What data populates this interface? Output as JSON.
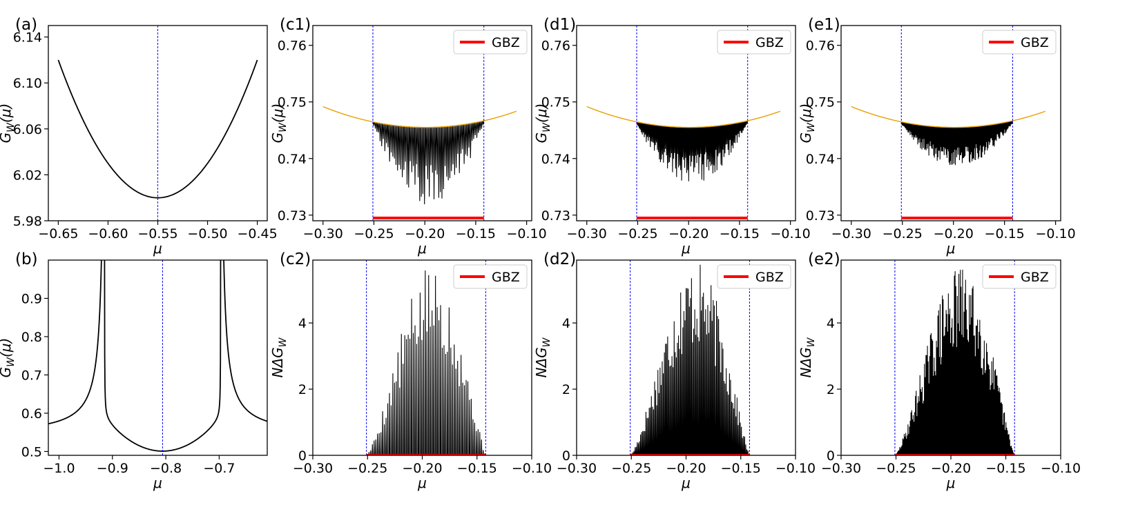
{
  "figure": "Eight-panel figure: G_W(mu) and N*Delta G_W versus mu with GBZ markers",
  "colors": {
    "curve": "#000000",
    "envelope": "#e8a000",
    "gbz": "#ff0000",
    "guide": "#0000ff",
    "frame": "#000000"
  },
  "chart_data": [
    {
      "id": "a",
      "panel_label": "(a)",
      "type": "line",
      "xlabel": "μ",
      "ylabel": "G_W(μ)",
      "ylabel_main": "G",
      "ylabel_sub": "W",
      "ylabel_tail": "(μ)",
      "xlim": [
        -0.66,
        -0.44
      ],
      "ylim": [
        5.98,
        6.15
      ],
      "xticks": [
        -0.65,
        -0.6,
        -0.55,
        -0.5,
        -0.45
      ],
      "xtick_labels": [
        "−0.65",
        "−0.60",
        "−0.55",
        "−0.50",
        "−0.45"
      ],
      "yticks": [
        5.98,
        6.02,
        6.06,
        6.1,
        6.14
      ],
      "ytick_labels": [
        "5.98",
        "6.02",
        "6.06",
        "6.10",
        "6.14"
      ],
      "curve": {
        "kind": "parabola",
        "x_range": [
          -0.65,
          -0.45
        ],
        "center": -0.55,
        "min": 6.0,
        "k": 12.0
      },
      "vlines": [
        -0.55
      ]
    },
    {
      "id": "b",
      "panel_label": "(b)",
      "type": "line",
      "xlabel": "μ",
      "ylabel": "G_W(μ)",
      "ylabel_main": "G",
      "ylabel_sub": "W",
      "ylabel_tail": "(μ)",
      "xlim": [
        -1.02,
        -0.61
      ],
      "ylim": [
        0.49,
        1.0
      ],
      "xticks": [
        -1.0,
        -0.9,
        -0.8,
        -0.7
      ],
      "xtick_labels": [
        "−1.0",
        "−0.9",
        "−0.8",
        "−0.7"
      ],
      "yticks": [
        0.5,
        0.6,
        0.7,
        0.8,
        0.9
      ],
      "ytick_labels": [
        "0.5",
        "0.6",
        "0.7",
        "0.8",
        "0.9"
      ],
      "curve": {
        "kind": "double_peak",
        "x_range": [
          -1.02,
          -0.61
        ],
        "peaks": [
          -0.915,
          -0.697
        ],
        "center": -0.806,
        "min": 0.5,
        "plateau": 0.574
      },
      "vlines": [
        -0.806
      ]
    },
    {
      "id": "c1",
      "panel_label": "(c1)",
      "type": "line",
      "xlabel": "μ",
      "ylabel": "G_W(μ)",
      "ylabel_main": "G",
      "ylabel_sub": "W",
      "ylabel_tail": "(μ)",
      "xlim": [
        -0.31,
        -0.095
      ],
      "ylim": [
        0.729,
        0.7635
      ],
      "xticks": [
        -0.3,
        -0.25,
        -0.2,
        -0.15,
        -0.1
      ],
      "xtick_labels": [
        "−0.30",
        "−0.25",
        "−0.20",
        "−0.15",
        "−0.10"
      ],
      "yticks": [
        0.73,
        0.74,
        0.75,
        0.76
      ],
      "ytick_labels": [
        "0.73",
        "0.74",
        "0.75",
        "0.76"
      ],
      "envelope": {
        "x_range": [
          -0.3,
          -0.11
        ],
        "center": -0.199,
        "min": 0.7455,
        "k": 0.36
      },
      "spikes": {
        "count": 70,
        "depth": 0.0135,
        "seed": 11
      },
      "gbz": [
        -0.251,
        -0.142
      ],
      "vlines": [
        -0.251,
        -0.142
      ],
      "legend": "GBZ"
    },
    {
      "id": "d1",
      "panel_label": "(d1)",
      "type": "line",
      "xlabel": "μ",
      "ylabel": "G_W(μ)",
      "ylabel_main": "G",
      "ylabel_sub": "W",
      "ylabel_tail": "(μ)",
      "xlim": [
        -0.31,
        -0.095
      ],
      "ylim": [
        0.729,
        0.7635
      ],
      "xticks": [
        -0.3,
        -0.25,
        -0.2,
        -0.15,
        -0.1
      ],
      "xtick_labels": [
        "−0.30",
        "−0.25",
        "−0.20",
        "−0.15",
        "−0.10"
      ],
      "yticks": [
        0.73,
        0.74,
        0.75,
        0.76
      ],
      "ytick_labels": [
        "0.73",
        "0.74",
        "0.75",
        "0.76"
      ],
      "envelope": {
        "x_range": [
          -0.3,
          -0.11
        ],
        "center": -0.199,
        "min": 0.7455,
        "k": 0.36
      },
      "spikes": {
        "count": 110,
        "depth": 0.0095,
        "seed": 23
      },
      "gbz": [
        -0.251,
        -0.142
      ],
      "vlines": [
        -0.251,
        -0.142
      ],
      "legend": "GBZ"
    },
    {
      "id": "e1",
      "panel_label": "(e1)",
      "type": "line",
      "xlabel": "μ",
      "ylabel": "G_W(μ)",
      "ylabel_main": "G",
      "ylabel_sub": "W",
      "ylabel_tail": "(μ)",
      "xlim": [
        -0.31,
        -0.095
      ],
      "ylim": [
        0.729,
        0.7635
      ],
      "xticks": [
        -0.3,
        -0.25,
        -0.2,
        -0.15,
        -0.1
      ],
      "xtick_labels": [
        "−0.30",
        "−0.25",
        "−0.20",
        "−0.15",
        "−0.10"
      ],
      "yticks": [
        0.73,
        0.74,
        0.75,
        0.76
      ],
      "ytick_labels": [
        "0.73",
        "0.74",
        "0.75",
        "0.76"
      ],
      "envelope": {
        "x_range": [
          -0.3,
          -0.11
        ],
        "center": -0.199,
        "min": 0.7455,
        "k": 0.36
      },
      "spikes": {
        "count": 160,
        "depth": 0.0065,
        "seed": 37
      },
      "gbz": [
        -0.251,
        -0.142
      ],
      "vlines": [
        -0.251,
        -0.142
      ],
      "legend": "GBZ"
    },
    {
      "id": "c2",
      "panel_label": "(c2)",
      "type": "line",
      "xlabel": "μ",
      "ylabel": "NΔG_W",
      "ylabel_main": "NΔG",
      "ylabel_sub": "W",
      "ylabel_tail": "",
      "xlim": [
        -0.3,
        -0.1
      ],
      "ylim": [
        0,
        5.9
      ],
      "xticks": [
        -0.3,
        -0.25,
        -0.2,
        -0.15,
        -0.1
      ],
      "xtick_labels": [
        "−0.30",
        "−0.25",
        "−0.20",
        "−0.15",
        "−0.10"
      ],
      "yticks": [
        0,
        2,
        4
      ],
      "ytick_labels": [
        "0",
        "2",
        "4"
      ],
      "peak": 5.75,
      "spikes": {
        "count": 70,
        "seed": 5
      },
      "support": [
        -0.251,
        -0.142
      ],
      "gbz": [
        -0.251,
        -0.142
      ],
      "vlines": [
        -0.251,
        -0.142
      ],
      "legend": "GBZ"
    },
    {
      "id": "d2",
      "panel_label": "(d2)",
      "type": "line",
      "xlabel": "μ",
      "ylabel": "NΔG_W",
      "ylabel_main": "NΔG",
      "ylabel_sub": "W",
      "ylabel_tail": "",
      "xlim": [
        -0.3,
        -0.1
      ],
      "ylim": [
        0,
        5.9
      ],
      "xticks": [
        -0.3,
        -0.25,
        -0.2,
        -0.15,
        -0.1
      ],
      "xtick_labels": [
        "−0.30",
        "−0.25",
        "−0.20",
        "−0.15",
        "−0.10"
      ],
      "yticks": [
        0,
        2,
        4
      ],
      "ytick_labels": [
        "0",
        "2",
        "4"
      ],
      "peak": 5.85,
      "spikes": {
        "count": 110,
        "seed": 17
      },
      "support": [
        -0.251,
        -0.142
      ],
      "gbz": [
        -0.251,
        -0.142
      ],
      "vlines": [
        -0.251,
        -0.142
      ],
      "legend": "GBZ"
    },
    {
      "id": "e2",
      "panel_label": "(e2)",
      "type": "line",
      "xlabel": "μ",
      "ylabel": "NΔG_W",
      "ylabel_main": "NΔG",
      "ylabel_sub": "W",
      "ylabel_tail": "",
      "xlim": [
        -0.3,
        -0.1
      ],
      "ylim": [
        0,
        5.9
      ],
      "xticks": [
        -0.3,
        -0.25,
        -0.2,
        -0.15,
        -0.1
      ],
      "xtick_labels": [
        "−0.30",
        "−0.25",
        "−0.20",
        "−0.15",
        "−0.10"
      ],
      "yticks": [
        0,
        2,
        4
      ],
      "ytick_labels": [
        "0",
        "2",
        "4"
      ],
      "peak": 5.7,
      "spikes": {
        "count": 160,
        "seed": 29
      },
      "support": [
        -0.251,
        -0.142
      ],
      "gbz": [
        -0.251,
        -0.142
      ],
      "vlines": [
        -0.251,
        -0.142
      ],
      "legend": "GBZ"
    }
  ]
}
